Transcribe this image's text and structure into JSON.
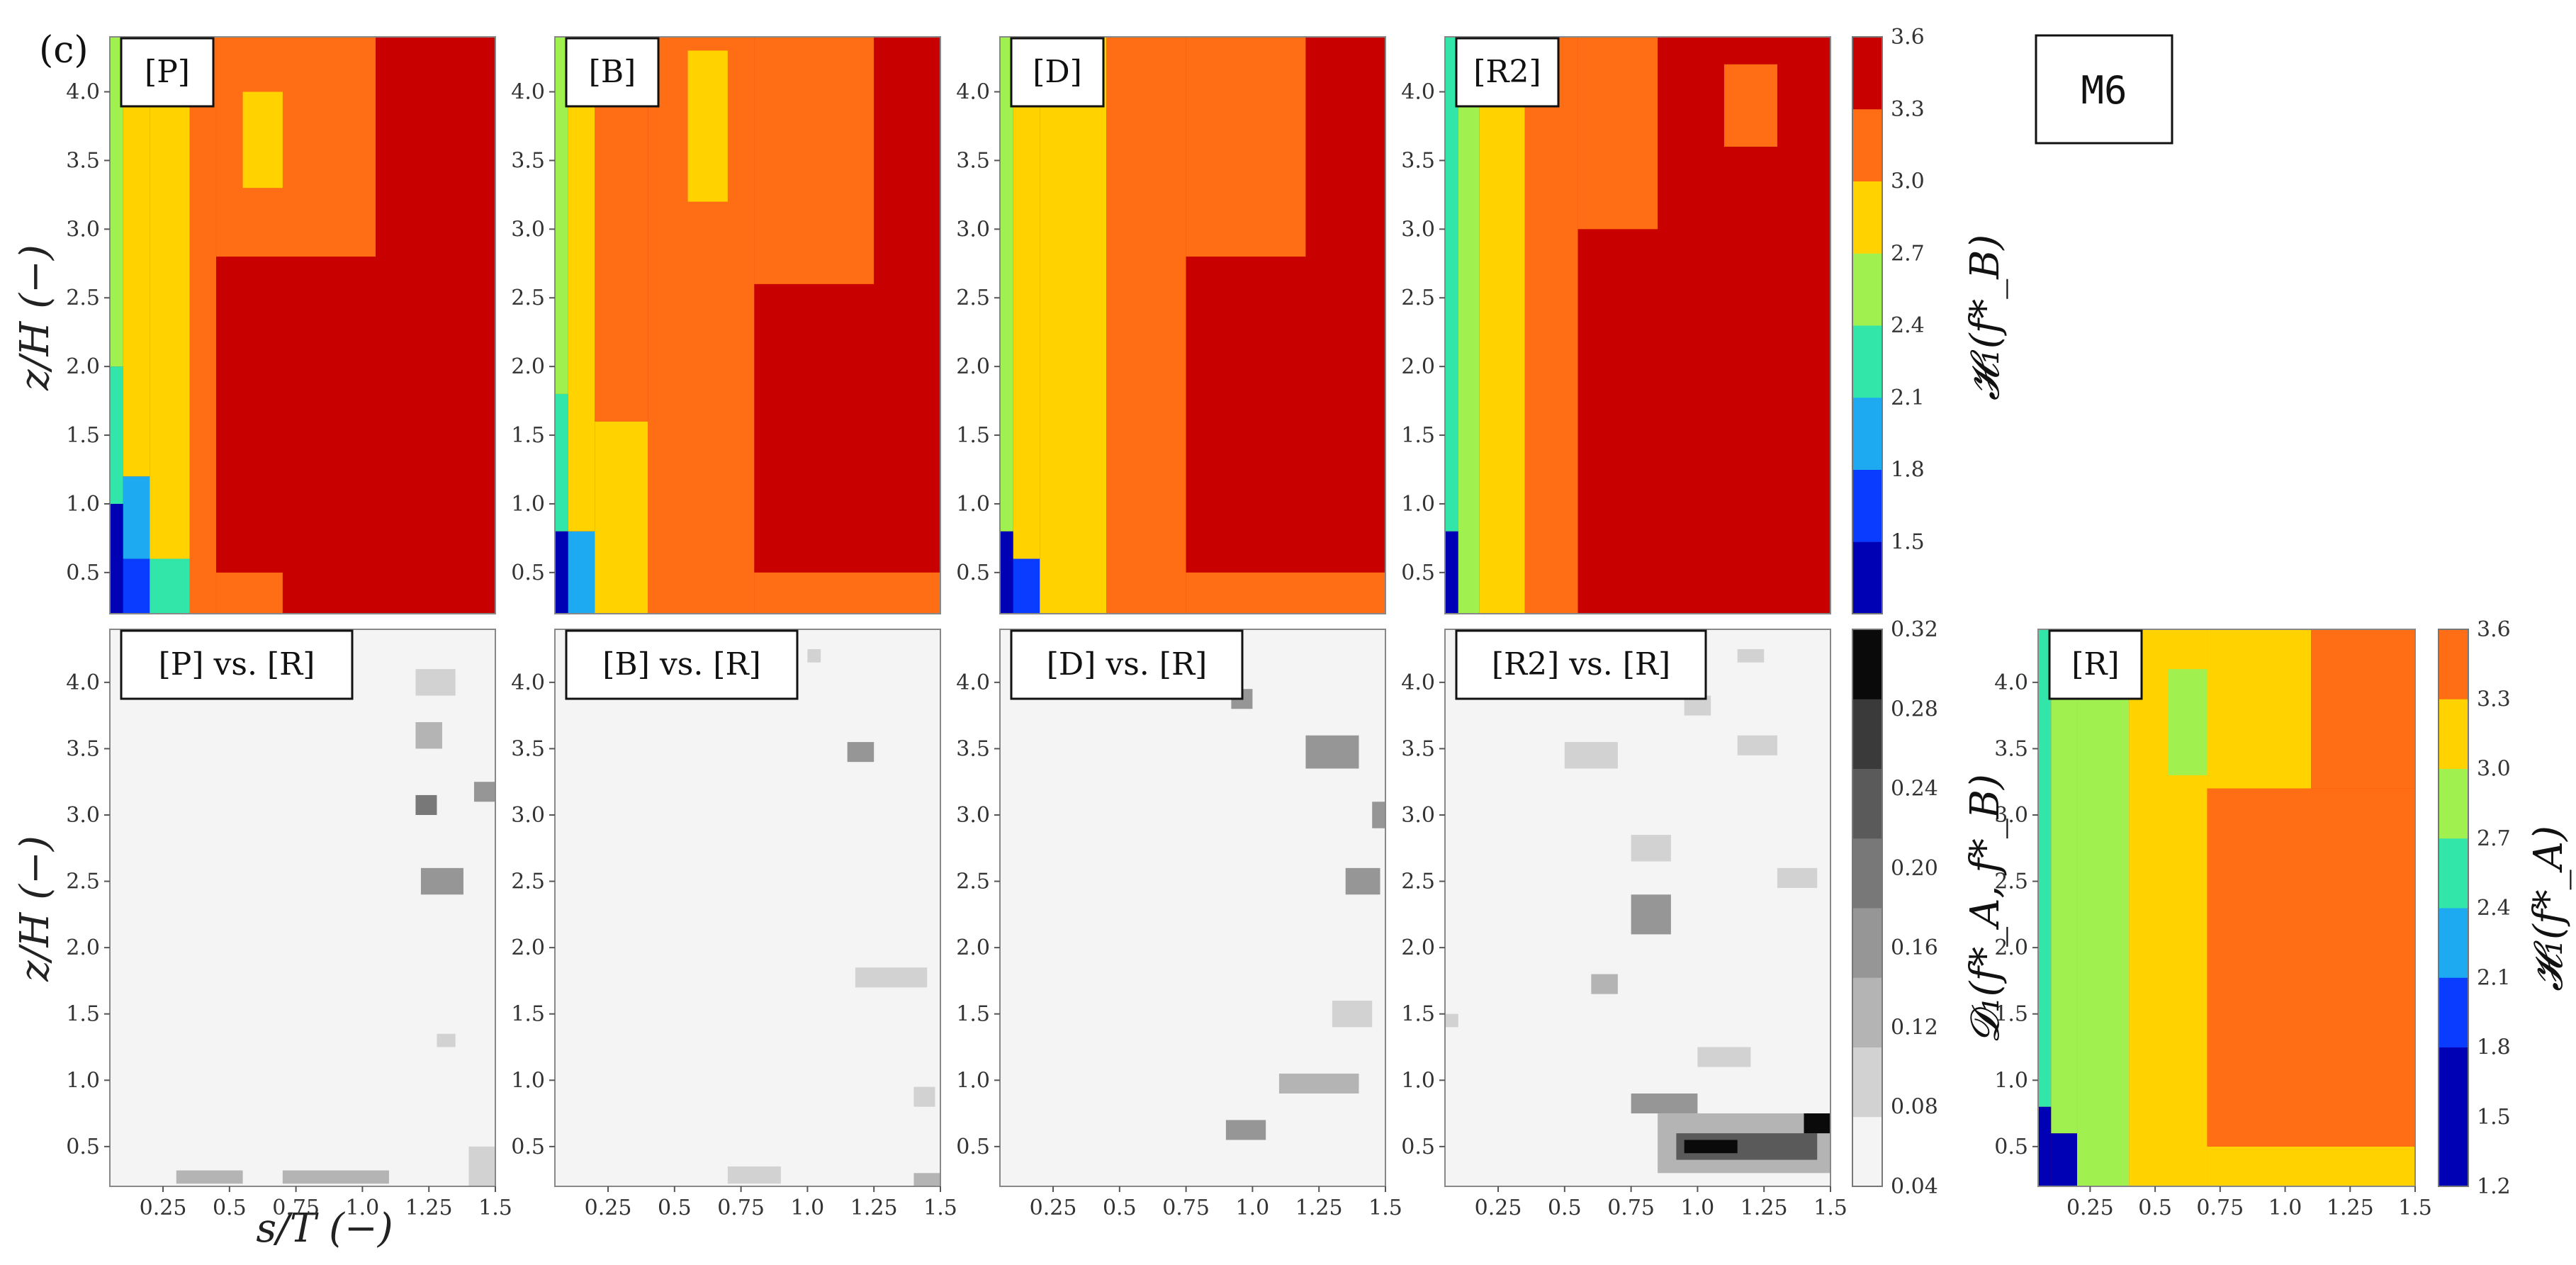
{
  "figure": {
    "subfigure_label": "(c)",
    "model_tag": "M6",
    "xlabel": "s/T    (−)",
    "ylabel": "z/H    (−)"
  },
  "colors": {
    "heatmap_levels": [
      "#0000b4",
      "#0a3cff",
      "#1eaaf0",
      "#32e6aa",
      "#a0f050",
      "#ffd200",
      "#ff6e14",
      "#c80000"
    ],
    "gray_levels": [
      "#f4f4f4",
      "#d2d2d2",
      "#b4b4b4",
      "#969696",
      "#787878",
      "#5a5a5a",
      "#3a3a3a",
      "#0a0a0a"
    ]
  },
  "colorbars": [
    {
      "id": "top",
      "label": "𝓗₁(f*_B)",
      "ticks": [
        "1.5",
        "1.8",
        "2.1",
        "2.4",
        "2.7",
        "3.0",
        "3.3",
        "3.6"
      ]
    },
    {
      "id": "gray",
      "label": "𝓓₁(f*_A, f*_B)",
      "ticks": [
        "0.04",
        "0.08",
        "0.12",
        "0.16",
        "0.20",
        "0.24",
        "0.28",
        "0.32"
      ]
    },
    {
      "id": "ref",
      "label": "𝓗₁(f*_A)",
      "ticks": [
        "1.2",
        "1.5",
        "1.8",
        "2.1",
        "2.4",
        "2.7",
        "3.0",
        "3.3",
        "3.6"
      ]
    }
  ],
  "chart_data": [
    {
      "type": "heatmap",
      "panel": "[P]",
      "x_ticks": [
        "0.25",
        "0.5",
        "0.75",
        "1.0",
        "1.25",
        "1.5"
      ],
      "y_ticks": [
        "0.5",
        "1.0",
        "1.5",
        "2.0",
        "2.5",
        "3.0",
        "3.5",
        "4.0"
      ],
      "xlim": [
        0.05,
        1.5
      ],
      "ylim": [
        0.2,
        4.4
      ],
      "color_levels": [
        1.5,
        1.8,
        2.1,
        2.4,
        2.7,
        3.0,
        3.3,
        3.6
      ],
      "regions": [
        {
          "x0": 0.05,
          "x1": 0.1,
          "y0": 0.2,
          "y1": 1.0,
          "level": 0
        },
        {
          "x0": 0.05,
          "x1": 0.1,
          "y0": 1.0,
          "y1": 2.0,
          "level": 3
        },
        {
          "x0": 0.05,
          "x1": 0.1,
          "y0": 2.0,
          "y1": 4.4,
          "level": 4
        },
        {
          "x0": 0.1,
          "x1": 0.2,
          "y0": 0.2,
          "y1": 0.6,
          "level": 1
        },
        {
          "x0": 0.1,
          "x1": 0.2,
          "y0": 0.6,
          "y1": 1.2,
          "level": 2
        },
        {
          "x0": 0.1,
          "x1": 0.2,
          "y0": 1.2,
          "y1": 4.4,
          "level": 5
        },
        {
          "x0": 0.2,
          "x1": 0.35,
          "y0": 0.2,
          "y1": 0.6,
          "level": 3
        },
        {
          "x0": 0.2,
          "x1": 0.35,
          "y0": 0.6,
          "y1": 4.4,
          "level": 5
        },
        {
          "x0": 0.35,
          "x1": 0.45,
          "y0": 0.2,
          "y1": 4.4,
          "level": 6
        },
        {
          "x0": 0.45,
          "x1": 0.7,
          "y0": 0.2,
          "y1": 0.5,
          "level": 6
        },
        {
          "x0": 0.45,
          "x1": 1.5,
          "y0": 0.5,
          "y1": 2.8,
          "level": 7
        },
        {
          "x0": 0.45,
          "x1": 1.05,
          "y0": 2.8,
          "y1": 4.4,
          "level": 6
        },
        {
          "x0": 1.05,
          "x1": 1.5,
          "y0": 2.8,
          "y1": 4.4,
          "level": 7
        },
        {
          "x0": 0.55,
          "x1": 0.7,
          "y0": 3.3,
          "y1": 4.0,
          "level": 5
        }
      ]
    },
    {
      "type": "heatmap",
      "panel": "[B]",
      "x_ticks": [
        "0.25",
        "0.5",
        "0.75",
        "1.0",
        "1.25",
        "1.5"
      ],
      "y_ticks": [
        "0.5",
        "1.0",
        "1.5",
        "2.0",
        "2.5",
        "3.0",
        "3.5",
        "4.0"
      ],
      "xlim": [
        0.05,
        1.5
      ],
      "ylim": [
        0.2,
        4.4
      ],
      "color_levels": [
        1.5,
        1.8,
        2.1,
        2.4,
        2.7,
        3.0,
        3.3,
        3.6
      ],
      "regions": [
        {
          "x0": 0.05,
          "x1": 0.1,
          "y0": 0.2,
          "y1": 0.8,
          "level": 0
        },
        {
          "x0": 0.05,
          "x1": 0.1,
          "y0": 0.8,
          "y1": 1.8,
          "level": 3
        },
        {
          "x0": 0.05,
          "x1": 0.1,
          "y0": 1.8,
          "y1": 4.4,
          "level": 4
        },
        {
          "x0": 0.1,
          "x1": 0.2,
          "y0": 0.2,
          "y1": 0.8,
          "level": 2
        },
        {
          "x0": 0.1,
          "x1": 0.2,
          "y0": 0.8,
          "y1": 4.4,
          "level": 5
        },
        {
          "x0": 0.2,
          "x1": 0.4,
          "y0": 0.2,
          "y1": 1.6,
          "level": 5
        },
        {
          "x0": 0.2,
          "x1": 0.4,
          "y0": 1.6,
          "y1": 4.4,
          "level": 6
        },
        {
          "x0": 0.4,
          "x1": 0.8,
          "y0": 0.2,
          "y1": 4.4,
          "level": 6
        },
        {
          "x0": 0.55,
          "x1": 0.7,
          "y0": 3.2,
          "y1": 4.3,
          "level": 5
        },
        {
          "x0": 0.8,
          "x1": 1.5,
          "y0": 0.5,
          "y1": 2.6,
          "level": 7
        },
        {
          "x0": 0.8,
          "x1": 1.5,
          "y0": 0.2,
          "y1": 0.5,
          "level": 6
        },
        {
          "x0": 0.8,
          "x1": 1.25,
          "y0": 2.6,
          "y1": 4.4,
          "level": 6
        },
        {
          "x0": 1.25,
          "x1": 1.5,
          "y0": 2.6,
          "y1": 4.4,
          "level": 7
        }
      ]
    },
    {
      "type": "heatmap",
      "panel": "[D]",
      "x_ticks": [
        "0.25",
        "0.5",
        "0.75",
        "1.0",
        "1.25",
        "1.5"
      ],
      "y_ticks": [
        "0.5",
        "1.0",
        "1.5",
        "2.0",
        "2.5",
        "3.0",
        "3.5",
        "4.0"
      ],
      "xlim": [
        0.05,
        1.5
      ],
      "ylim": [
        0.2,
        4.4
      ],
      "color_levels": [
        1.5,
        1.8,
        2.1,
        2.4,
        2.7,
        3.0,
        3.3,
        3.6
      ],
      "regions": [
        {
          "x0": 0.05,
          "x1": 0.1,
          "y0": 0.2,
          "y1": 0.8,
          "level": 0
        },
        {
          "x0": 0.05,
          "x1": 0.1,
          "y0": 0.8,
          "y1": 4.4,
          "level": 4
        },
        {
          "x0": 0.1,
          "x1": 0.2,
          "y0": 0.2,
          "y1": 0.6,
          "level": 1
        },
        {
          "x0": 0.1,
          "x1": 0.2,
          "y0": 0.6,
          "y1": 4.4,
          "level": 5
        },
        {
          "x0": 0.2,
          "x1": 0.45,
          "y0": 0.2,
          "y1": 4.4,
          "level": 5
        },
        {
          "x0": 0.45,
          "x1": 0.75,
          "y0": 0.2,
          "y1": 4.4,
          "level": 6
        },
        {
          "x0": 0.75,
          "x1": 1.5,
          "y0": 0.5,
          "y1": 2.8,
          "level": 7
        },
        {
          "x0": 0.75,
          "x1": 1.5,
          "y0": 0.2,
          "y1": 0.5,
          "level": 6
        },
        {
          "x0": 0.75,
          "x1": 1.2,
          "y0": 2.8,
          "y1": 4.4,
          "level": 6
        },
        {
          "x0": 1.2,
          "x1": 1.5,
          "y0": 2.8,
          "y1": 4.4,
          "level": 7
        }
      ]
    },
    {
      "type": "heatmap",
      "panel": "[R2]",
      "x_ticks": [
        "0.25",
        "0.5",
        "0.75",
        "1.0",
        "1.25",
        "1.5"
      ],
      "y_ticks": [
        "0.5",
        "1.0",
        "1.5",
        "2.0",
        "2.5",
        "3.0",
        "3.5",
        "4.0"
      ],
      "xlim": [
        0.05,
        1.5
      ],
      "ylim": [
        0.2,
        4.4
      ],
      "color_levels": [
        1.5,
        1.8,
        2.1,
        2.4,
        2.7,
        3.0,
        3.3,
        3.6
      ],
      "regions": [
        {
          "x0": 0.05,
          "x1": 0.1,
          "y0": 0.2,
          "y1": 0.8,
          "level": 0
        },
        {
          "x0": 0.05,
          "x1": 0.1,
          "y0": 0.8,
          "y1": 4.4,
          "level": 3
        },
        {
          "x0": 0.1,
          "x1": 0.18,
          "y0": 0.2,
          "y1": 4.4,
          "level": 4
        },
        {
          "x0": 0.18,
          "x1": 0.35,
          "y0": 0.2,
          "y1": 4.4,
          "level": 5
        },
        {
          "x0": 0.35,
          "x1": 0.55,
          "y0": 0.2,
          "y1": 4.4,
          "level": 6
        },
        {
          "x0": 0.55,
          "x1": 1.5,
          "y0": 0.2,
          "y1": 4.4,
          "level": 7
        },
        {
          "x0": 0.55,
          "x1": 0.85,
          "y0": 3.0,
          "y1": 4.4,
          "level": 6
        },
        {
          "x0": 1.1,
          "x1": 1.3,
          "y0": 3.6,
          "y1": 4.2,
          "level": 6
        }
      ]
    },
    {
      "type": "heatmap",
      "panel": "[P] vs. [R]",
      "x_ticks": [
        "0.25",
        "0.5",
        "0.75",
        "1.0",
        "1.25",
        "1.5"
      ],
      "y_ticks": [
        "0.5",
        "1.0",
        "1.5",
        "2.0",
        "2.5",
        "3.0",
        "3.5",
        "4.0"
      ],
      "xlim": [
        0.05,
        1.5
      ],
      "ylim": [
        0.2,
        4.4
      ],
      "color_levels": [
        0.04,
        0.08,
        0.12,
        0.16,
        0.2,
        0.24,
        0.28,
        0.32
      ],
      "regions": [
        {
          "x0": 1.2,
          "x1": 1.35,
          "y0": 3.9,
          "y1": 4.1,
          "level": 1
        },
        {
          "x0": 1.2,
          "x1": 1.3,
          "y0": 3.5,
          "y1": 3.7,
          "level": 2
        },
        {
          "x0": 1.2,
          "x1": 1.28,
          "y0": 3.0,
          "y1": 3.15,
          "level": 4
        },
        {
          "x0": 1.42,
          "x1": 1.5,
          "y0": 3.1,
          "y1": 3.25,
          "level": 3
        },
        {
          "x0": 1.22,
          "x1": 1.38,
          "y0": 2.4,
          "y1": 2.6,
          "level": 3
        },
        {
          "x0": 1.28,
          "x1": 1.35,
          "y0": 1.25,
          "y1": 1.35,
          "level": 1
        },
        {
          "x0": 0.3,
          "x1": 0.55,
          "y0": 0.22,
          "y1": 0.32,
          "level": 2
        },
        {
          "x0": 0.7,
          "x1": 1.1,
          "y0": 0.22,
          "y1": 0.32,
          "level": 2
        },
        {
          "x0": 1.4,
          "x1": 1.5,
          "y0": 0.2,
          "y1": 0.5,
          "level": 1
        }
      ]
    },
    {
      "type": "heatmap",
      "panel": "[B] vs. [R]",
      "x_ticks": [
        "0.25",
        "0.5",
        "0.75",
        "1.0",
        "1.25",
        "1.5"
      ],
      "y_ticks": [
        "0.5",
        "1.0",
        "1.5",
        "2.0",
        "2.5",
        "3.0",
        "3.5",
        "4.0"
      ],
      "xlim": [
        0.05,
        1.5
      ],
      "ylim": [
        0.2,
        4.4
      ],
      "color_levels": [
        0.04,
        0.08,
        0.12,
        0.16,
        0.2,
        0.24,
        0.28,
        0.32
      ],
      "regions": [
        {
          "x0": 1.0,
          "x1": 1.05,
          "y0": 4.15,
          "y1": 4.25,
          "level": 1
        },
        {
          "x0": 1.15,
          "x1": 1.25,
          "y0": 3.4,
          "y1": 3.55,
          "level": 3
        },
        {
          "x0": 1.18,
          "x1": 1.45,
          "y0": 1.7,
          "y1": 1.85,
          "level": 1
        },
        {
          "x0": 1.4,
          "x1": 1.48,
          "y0": 0.8,
          "y1": 0.95,
          "level": 1
        },
        {
          "x0": 0.7,
          "x1": 0.9,
          "y0": 0.22,
          "y1": 0.35,
          "level": 1
        },
        {
          "x0": 1.4,
          "x1": 1.5,
          "y0": 0.2,
          "y1": 0.3,
          "level": 2
        }
      ]
    },
    {
      "type": "heatmap",
      "panel": "[D] vs. [R]",
      "x_ticks": [
        "0.25",
        "0.5",
        "0.75",
        "1.0",
        "1.25",
        "1.5"
      ],
      "y_ticks": [
        "0.5",
        "1.0",
        "1.5",
        "2.0",
        "2.5",
        "3.0",
        "3.5",
        "4.0"
      ],
      "xlim": [
        0.05,
        1.5
      ],
      "ylim": [
        0.2,
        4.4
      ],
      "color_levels": [
        0.04,
        0.08,
        0.12,
        0.16,
        0.2,
        0.24,
        0.28,
        0.32
      ],
      "regions": [
        {
          "x0": 0.92,
          "x1": 1.0,
          "y0": 3.8,
          "y1": 3.95,
          "level": 3
        },
        {
          "x0": 1.2,
          "x1": 1.4,
          "y0": 3.35,
          "y1": 3.6,
          "level": 3
        },
        {
          "x0": 1.45,
          "x1": 1.5,
          "y0": 2.9,
          "y1": 3.1,
          "level": 3
        },
        {
          "x0": 1.35,
          "x1": 1.48,
          "y0": 2.4,
          "y1": 2.6,
          "level": 3
        },
        {
          "x0": 1.3,
          "x1": 1.45,
          "y0": 1.4,
          "y1": 1.6,
          "level": 1
        },
        {
          "x0": 1.1,
          "x1": 1.4,
          "y0": 0.9,
          "y1": 1.05,
          "level": 2
        },
        {
          "x0": 0.9,
          "x1": 1.05,
          "y0": 0.55,
          "y1": 0.7,
          "level": 3
        }
      ]
    },
    {
      "type": "heatmap",
      "panel": "[R2] vs. [R]",
      "x_ticks": [
        "0.25",
        "0.5",
        "0.75",
        "1.0",
        "1.25",
        "1.5"
      ],
      "y_ticks": [
        "0.5",
        "1.0",
        "1.5",
        "2.0",
        "2.5",
        "3.0",
        "3.5",
        "4.0"
      ],
      "xlim": [
        0.05,
        1.5
      ],
      "ylim": [
        0.2,
        4.4
      ],
      "color_levels": [
        0.04,
        0.08,
        0.12,
        0.16,
        0.2,
        0.24,
        0.28,
        0.32
      ],
      "regions": [
        {
          "x0": 1.15,
          "x1": 1.25,
          "y0": 4.15,
          "y1": 4.25,
          "level": 1
        },
        {
          "x0": 0.95,
          "x1": 1.05,
          "y0": 3.75,
          "y1": 3.9,
          "level": 1
        },
        {
          "x0": 0.5,
          "x1": 0.7,
          "y0": 3.35,
          "y1": 3.55,
          "level": 1
        },
        {
          "x0": 1.15,
          "x1": 1.3,
          "y0": 3.45,
          "y1": 3.6,
          "level": 1
        },
        {
          "x0": 0.75,
          "x1": 0.9,
          "y0": 2.65,
          "y1": 2.85,
          "level": 1
        },
        {
          "x0": 1.3,
          "x1": 1.45,
          "y0": 2.45,
          "y1": 2.6,
          "level": 1
        },
        {
          "x0": 0.75,
          "x1": 0.9,
          "y0": 2.1,
          "y1": 2.4,
          "level": 3
        },
        {
          "x0": 0.6,
          "x1": 0.7,
          "y0": 1.65,
          "y1": 1.8,
          "level": 2
        },
        {
          "x0": 0.05,
          "x1": 0.1,
          "y0": 1.4,
          "y1": 1.5,
          "level": 1
        },
        {
          "x0": 1.0,
          "x1": 1.2,
          "y0": 1.1,
          "y1": 1.25,
          "level": 1
        },
        {
          "x0": 0.75,
          "x1": 1.0,
          "y0": 0.75,
          "y1": 0.9,
          "level": 3
        },
        {
          "x0": 0.85,
          "x1": 1.5,
          "y0": 0.3,
          "y1": 0.75,
          "level": 2
        },
        {
          "x0": 0.92,
          "x1": 1.45,
          "y0": 0.4,
          "y1": 0.6,
          "level": 5
        },
        {
          "x0": 0.95,
          "x1": 1.15,
          "y0": 0.45,
          "y1": 0.55,
          "level": 7
        },
        {
          "x0": 1.4,
          "x1": 1.5,
          "y0": 0.6,
          "y1": 0.75,
          "level": 7
        }
      ]
    },
    {
      "type": "heatmap",
      "panel": "[R]",
      "x_ticks": [
        "0.25",
        "0.5",
        "0.75",
        "1.0",
        "1.25",
        "1.5"
      ],
      "y_ticks": [
        "0.5",
        "1.0",
        "1.5",
        "2.0",
        "2.5",
        "3.0",
        "3.5",
        "4.0"
      ],
      "xlim": [
        0.05,
        1.5
      ],
      "ylim": [
        0.2,
        4.4
      ],
      "color_levels": [
        1.2,
        1.5,
        1.8,
        2.1,
        2.4,
        2.7,
        3.0,
        3.3,
        3.6
      ],
      "regions": [
        {
          "x0": 0.05,
          "x1": 0.1,
          "y0": 0.2,
          "y1": 0.8,
          "level": 0
        },
        {
          "x0": 0.05,
          "x1": 0.1,
          "y0": 0.8,
          "y1": 4.4,
          "level": 4
        },
        {
          "x0": 0.1,
          "x1": 0.2,
          "y0": 0.2,
          "y1": 0.6,
          "level": 1
        },
        {
          "x0": 0.1,
          "x1": 0.2,
          "y0": 0.6,
          "y1": 4.4,
          "level": 5
        },
        {
          "x0": 0.2,
          "x1": 0.4,
          "y0": 0.2,
          "y1": 4.4,
          "level": 5
        },
        {
          "x0": 0.4,
          "x1": 0.7,
          "y0": 0.2,
          "y1": 4.4,
          "level": 6
        },
        {
          "x0": 0.55,
          "x1": 0.7,
          "y0": 3.3,
          "y1": 4.1,
          "level": 5
        },
        {
          "x0": 0.7,
          "x1": 1.5,
          "y0": 0.5,
          "y1": 3.2,
          "level": 7
        },
        {
          "x0": 0.7,
          "x1": 1.5,
          "y0": 0.2,
          "y1": 0.5,
          "level": 6
        },
        {
          "x0": 0.7,
          "x1": 1.1,
          "y0": 3.2,
          "y1": 4.4,
          "level": 6
        },
        {
          "x0": 1.1,
          "x1": 1.5,
          "y0": 3.2,
          "y1": 4.4,
          "level": 7
        }
      ]
    }
  ]
}
